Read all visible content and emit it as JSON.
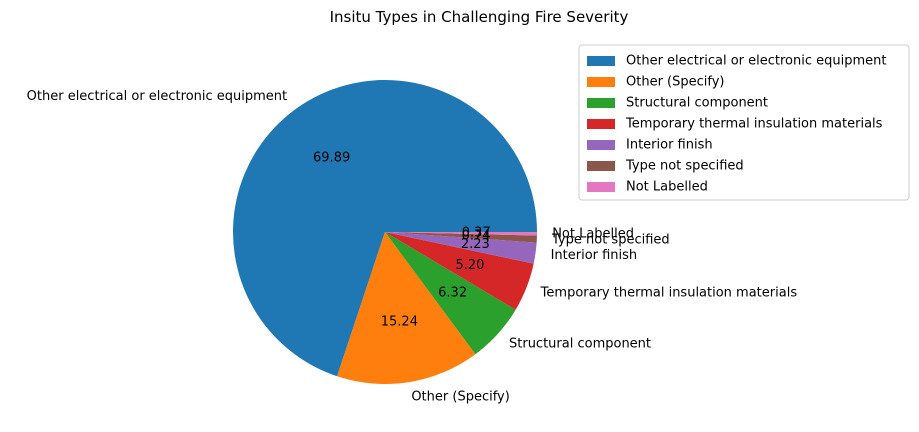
{
  "chart_data": {
    "type": "pie",
    "title": "Insitu Types in Challenging Fire Severity",
    "categories": [
      "Other electrical or electronic equipment",
      "Other (Specify)",
      "Structural component",
      "Temporary thermal insulation materials",
      "Interior finish",
      "Type not specified",
      "Not Labelled"
    ],
    "values": [
      69.89,
      15.24,
      6.32,
      5.2,
      2.23,
      0.74,
      0.37
    ],
    "value_labels": [
      "69.89",
      "15.24",
      "6.32",
      "5.20",
      "2.23",
      "0.74",
      "0.37"
    ],
    "colors": [
      "#1f77b4",
      "#ff7f0e",
      "#2ca02c",
      "#d62728",
      "#9467bd",
      "#8c564b",
      "#e377c2"
    ],
    "legend": {
      "placement": "upper-right outside",
      "entries": [
        "Other electrical or electronic equipment",
        "Other (Specify)",
        "Structural component",
        "Temporary thermal insulation materials",
        "Interior finish",
        "Type not specified",
        "Not Labelled"
      ]
    },
    "start_angle_deg": 0,
    "direction": "counterclockwise"
  }
}
